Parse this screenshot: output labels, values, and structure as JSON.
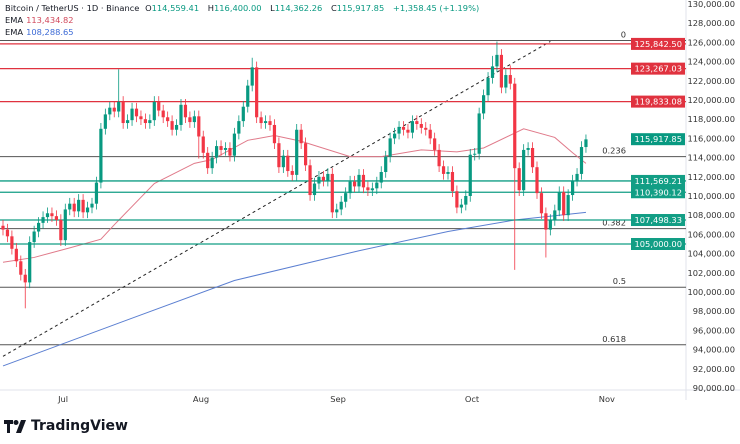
{
  "header": {
    "symbol": "Bitcoin / TetherUS · 1D · Binance",
    "o_label": "O",
    "o": "114,559.41",
    "h_label": "H",
    "h": "116,400.00",
    "l_label": "L",
    "l": "114,362.26",
    "c_label": "C",
    "c": "115,917.85",
    "change": "+1,358.45 (+1.19%)",
    "ema1_label": "EMA",
    "ema1": "113,434.82",
    "ema2_label": "EMA",
    "ema2": "108,288.65"
  },
  "logo": "TradingView",
  "colors": {
    "up": "#089981",
    "down": "#f23645",
    "ema_fast": "#e07a8a",
    "ema_slow": "#5b7fd1",
    "resistance": "#e0323f",
    "support": "#129e85",
    "fib": "#555555"
  },
  "chart_data": {
    "type": "candlestick",
    "ylim": [
      90000,
      130000
    ],
    "y_ticks": [
      "130,000.00",
      "128,000.00",
      "126,000.00",
      "124,000.00",
      "122,000.00",
      "120,000.00",
      "118,000.00",
      "116,000.00",
      "114,000.00",
      "112,000.00",
      "110,000.00",
      "108,000.00",
      "106,000.00",
      "104,000.00",
      "102,000.00",
      "100,000.00",
      "98,000.00",
      "96,000.00",
      "94,000.00",
      "92,000.00",
      "90,000.00"
    ],
    "x_ticks": [
      {
        "label": "Jul",
        "index": 13.5
      },
      {
        "label": "Aug",
        "index": 44.5
      },
      {
        "label": "Sep",
        "index": 75.3
      },
      {
        "label": "Oct",
        "index": 105.4
      },
      {
        "label": "Nov",
        "index": 135.7
      }
    ],
    "first_open": 106.9,
    "closes_k": [
      106.5,
      105.8,
      104.5,
      103.2,
      101.8,
      101.0,
      105.2,
      106.3,
      107.2,
      107.8,
      108.2,
      107.9,
      107.5,
      105.4,
      108.6,
      109.2,
      108.4,
      109.6,
      108.3,
      108.8,
      109.2,
      111.4,
      117.0,
      118.5,
      119.2,
      118.8,
      119.8,
      117.6,
      117.9,
      119.1,
      118.3,
      118.0,
      117.6,
      117.9,
      119.8,
      118.9,
      118.2,
      117.8,
      116.9,
      117.4,
      119.5,
      118.2,
      117.7,
      118.3,
      116.2,
      114.5,
      112.9,
      114.0,
      115.2,
      114.8,
      115.0,
      114.2,
      116.5,
      117.8,
      119.3,
      121.5,
      123.4,
      118.2,
      117.6,
      117.8,
      117.4,
      115.5,
      113.0,
      114.2,
      112.6,
      112.2,
      116.9,
      115.5,
      113.2,
      110.1,
      111.3,
      112.0,
      111.6,
      112.3,
      108.3,
      108.6,
      109.4,
      110.3,
      111.5,
      111.0,
      112.2,
      110.9,
      110.6,
      110.8,
      111.4,
      112.5,
      114.1,
      116.0,
      116.5,
      117.2,
      116.9,
      116.6,
      117.8,
      117.5,
      117.1,
      116.9,
      116.0,
      114.8,
      113.1,
      112.3,
      112.5,
      110.5,
      108.8,
      109.1,
      110.0,
      114.3,
      114.4,
      118.6,
      120.5,
      122.3,
      123.5,
      124.7,
      121.3,
      122.6,
      121.7,
      112.9,
      110.6,
      114.8,
      115.0,
      113.0,
      110.3,
      108.2,
      106.5,
      107.5,
      108.5,
      110.4,
      108.0,
      110.1,
      111.6,
      112.3,
      115.1,
      115.9
    ],
    "default_wick_k": 0.6,
    "high_overrides_k": {
      "26": 123.2,
      "56": 124.4,
      "57": 124.0,
      "110": 124.6,
      "111": 126.1,
      "114": 123.6,
      "131": 116.4
    },
    "low_overrides_k": {
      "5": 98.3,
      "115": 102.3,
      "122": 103.6,
      "13": 104.8,
      "44": 113.9
    },
    "ema_fast": [
      [
        0,
        103.1
      ],
      [
        7,
        103.6
      ],
      [
        15,
        104.6
      ],
      [
        22,
        105.5
      ],
      [
        25,
        107.0
      ],
      [
        34,
        111.3
      ],
      [
        43,
        113.4
      ],
      [
        47,
        113.8
      ],
      [
        55,
        115.8
      ],
      [
        61,
        116.3
      ],
      [
        67,
        115.7
      ],
      [
        78,
        114.1
      ],
      [
        85,
        114.1
      ],
      [
        94,
        114.8
      ],
      [
        102,
        114.6
      ],
      [
        108,
        115.0
      ],
      [
        117,
        117.0
      ],
      [
        124,
        116.1
      ],
      [
        128,
        114.5
      ],
      [
        131,
        113.4
      ]
    ],
    "ema_slow": [
      [
        0,
        92.3
      ],
      [
        28,
        97.1
      ],
      [
        52,
        101.2
      ],
      [
        80,
        104.3
      ],
      [
        100,
        106.3
      ],
      [
        115,
        107.5
      ],
      [
        131,
        108.3
      ]
    ],
    "trendline": {
      "from": [
        0,
        93.3
      ],
      "to": [
        123,
        126.1
      ]
    },
    "resistance_levels": [
      {
        "value": 125842.5,
        "label": "125,842.50"
      },
      {
        "value": 123267.03,
        "label": "123,267.03"
      },
      {
        "value": 119833.08,
        "label": "119,833.08"
      }
    ],
    "support_levels": [
      {
        "value": 111569.21,
        "label": "111,569.21"
      },
      {
        "value": 110390.12,
        "label": "110,390.12"
      },
      {
        "value": 107498.33,
        "label": "107,498.33"
      },
      {
        "value": 105000,
        "label": "105,000.00"
      }
    ],
    "last_price": {
      "value": 115917.85,
      "label": "115,917.85"
    },
    "fib_levels": [
      {
        "ratio": "0",
        "value": 126200
      },
      {
        "ratio": "0.236",
        "value": 114100
      },
      {
        "ratio": "0.382",
        "value": 106600
      },
      {
        "ratio": "0.5",
        "value": 100500
      },
      {
        "ratio": "0.618",
        "value": 94500
      }
    ]
  }
}
